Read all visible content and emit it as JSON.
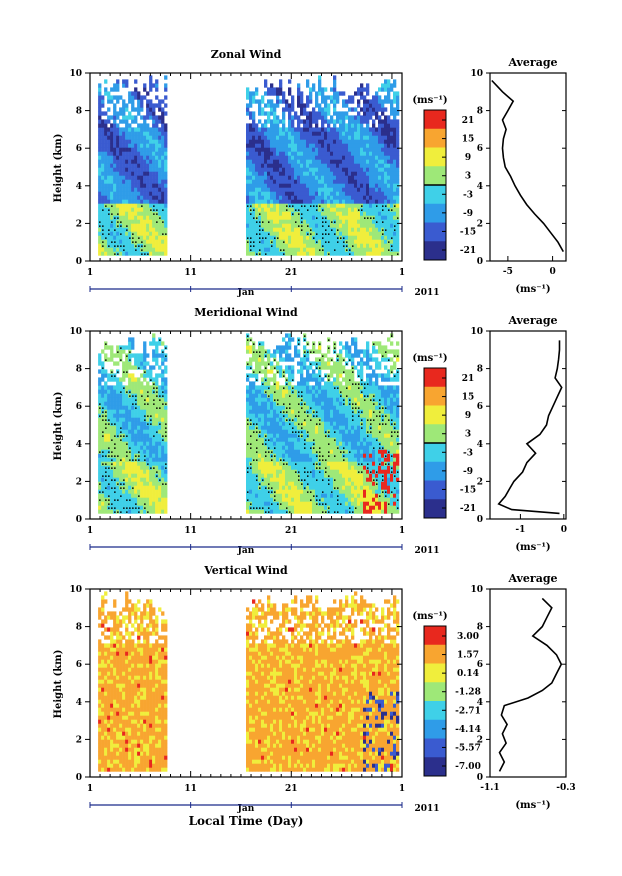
{
  "chart_data": [
    {
      "type": "heatmap",
      "title": "Zonal Wind",
      "ylabel": "Height (km)",
      "unit": "(ms⁻¹)",
      "xlim": [
        1,
        32
      ],
      "ylim": [
        0,
        10
      ],
      "x_ticks": [
        "1",
        "11",
        "21",
        "1"
      ],
      "y_ticks": [
        0,
        2,
        4,
        6,
        8,
        10
      ],
      "month_label": "Jan",
      "year_label": "2011",
      "data_days": [
        [
          1.8,
          8.5
        ],
        [
          16.5,
          31.7
        ]
      ],
      "colorbar": {
        "ticks": [
          "21",
          "15",
          "9",
          "3",
          "-3",
          "-9",
          "-15",
          "-21"
        ],
        "range": [
          -24,
          24
        ]
      },
      "field": {
        "base_pos": 2,
        "base_neg": -12,
        "contour": "zero"
      },
      "average": {
        "title": "Average",
        "xlabel": "(ms⁻¹)",
        "xlim": [
          -7,
          1.5
        ],
        "ylim": [
          0,
          10
        ],
        "x_ticks": [
          "-5",
          "0"
        ],
        "profile": {
          "h": [
            0.5,
            1.0,
            1.5,
            2.0,
            2.5,
            3.0,
            3.5,
            4.0,
            4.5,
            5.0,
            5.5,
            6.0,
            6.5,
            7.0,
            7.5,
            8.0,
            8.5,
            9.0,
            9.3,
            9.6
          ],
          "v": [
            1.2,
            0.6,
            -0.2,
            -1.0,
            -2.0,
            -2.9,
            -3.6,
            -4.2,
            -4.7,
            -5.3,
            -5.5,
            -5.6,
            -5.5,
            -5.2,
            -5.6,
            -5.0,
            -4.4,
            -5.6,
            -6.2,
            -6.8
          ]
        }
      }
    },
    {
      "type": "heatmap",
      "title": "Meridional Wind",
      "ylabel": "Height (km)",
      "unit": "(ms⁻¹)",
      "xlim": [
        1,
        32
      ],
      "ylim": [
        0,
        10
      ],
      "x_ticks": [
        "1",
        "11",
        "21",
        "1"
      ],
      "y_ticks": [
        0,
        2,
        4,
        6,
        8,
        10
      ],
      "month_label": "Jan",
      "year_label": "2011",
      "data_days": [
        [
          1.8,
          8.5
        ],
        [
          16.5,
          31.7
        ]
      ],
      "colorbar": {
        "ticks": [
          "21",
          "15",
          "9",
          "3",
          "-3",
          "-9",
          "-15",
          "-21"
        ],
        "range": [
          -24,
          24
        ]
      },
      "field": {
        "base_pos": 2,
        "base_neg": -2,
        "contour": "zero"
      },
      "average": {
        "title": "Average",
        "xlabel": "(ms⁻¹)",
        "xlim": [
          -1.7,
          0.05
        ],
        "ylim": [
          0,
          10
        ],
        "x_ticks": [
          "-1",
          "0"
        ],
        "profile": {
          "h": [
            0.3,
            0.5,
            0.8,
            1.2,
            1.6,
            2.0,
            2.5,
            3.0,
            3.5,
            4.0,
            4.5,
            5.0,
            5.5,
            6.0,
            6.5,
            7.0,
            7.5,
            8.0,
            8.5,
            9.0,
            9.5
          ],
          "v": [
            -0.1,
            -1.2,
            -1.5,
            -1.35,
            -1.25,
            -1.15,
            -0.95,
            -0.85,
            -0.65,
            -0.85,
            -0.55,
            -0.4,
            -0.35,
            -0.25,
            -0.15,
            -0.05,
            -0.2,
            -0.15,
            -0.12,
            -0.1,
            -0.1
          ]
        }
      }
    },
    {
      "type": "heatmap",
      "title": "Vertical Wind",
      "ylabel": "Height (km)",
      "xlabel": "Local Time (Day)",
      "unit": "(ms⁻¹)",
      "xlim": [
        1,
        32
      ],
      "ylim": [
        0,
        10
      ],
      "x_ticks": [
        "1",
        "11",
        "21",
        "1"
      ],
      "y_ticks": [
        0,
        2,
        4,
        6,
        8,
        10
      ],
      "month_label": "Jan",
      "year_label": "2011",
      "data_days": [
        [
          1.8,
          8.5
        ],
        [
          16.5,
          31.7
        ]
      ],
      "colorbar": {
        "ticks": [
          "3.00",
          "1.57",
          "0.14",
          "-1.28",
          "-2.71",
          "-4.14",
          "-5.57",
          "-7.00"
        ],
        "range": [
          -7.5,
          3.5
        ]
      },
      "field": {
        "base_pos": 1.1,
        "base_neg": 0.6,
        "contour": "none"
      },
      "average": {
        "title": "Average",
        "xlabel": "(ms⁻¹)",
        "xlim": [
          -1.1,
          -0.3
        ],
        "ylim": [
          0,
          10
        ],
        "x_ticks": [
          "-1.1",
          "-0.3"
        ],
        "profile": {
          "h": [
            0.3,
            0.8,
            1.3,
            1.8,
            2.3,
            2.8,
            3.3,
            3.8,
            4.2,
            4.6,
            5.0,
            5.5,
            6.0,
            6.5,
            7.0,
            7.5,
            8.0,
            8.5,
            9.0,
            9.5
          ],
          "v": [
            -1.0,
            -0.95,
            -1.0,
            -0.93,
            -0.97,
            -0.92,
            -0.98,
            -0.95,
            -0.7,
            -0.55,
            -0.45,
            -0.4,
            -0.35,
            -0.4,
            -0.5,
            -0.65,
            -0.55,
            -0.5,
            -0.45,
            -0.55
          ]
        }
      }
    }
  ]
}
